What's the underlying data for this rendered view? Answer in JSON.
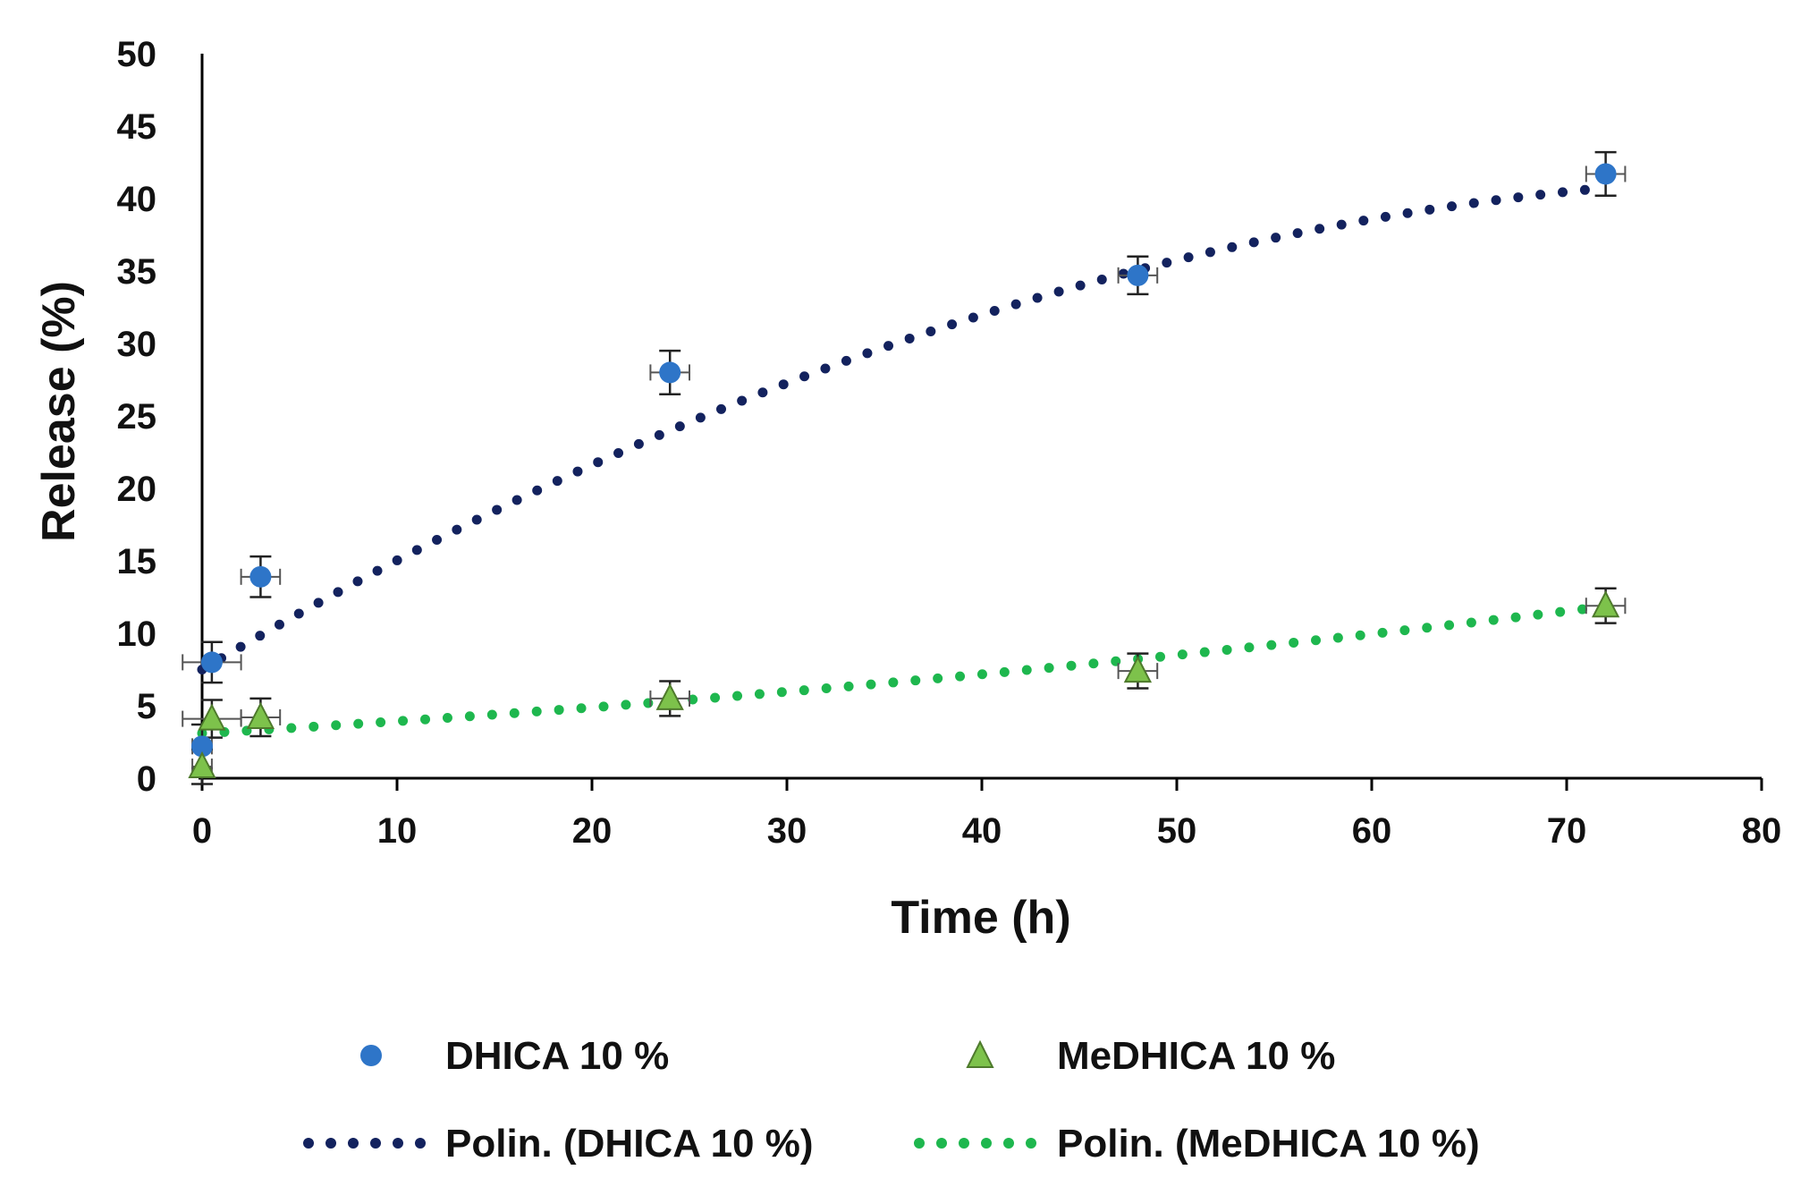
{
  "chart_data": {
    "type": "scatter",
    "title": "",
    "xlabel": "Time (h)",
    "ylabel": "Release (%)",
    "xlim": [
      0,
      80
    ],
    "ylim": [
      0,
      50
    ],
    "xticks": [
      0,
      10,
      20,
      30,
      40,
      50,
      60,
      70,
      80
    ],
    "yticks": [
      0,
      5,
      10,
      15,
      20,
      25,
      30,
      35,
      40,
      45,
      50
    ],
    "grid": false,
    "legend_position": "bottom",
    "series": [
      {
        "name": "DHICA 10 %",
        "marker": "circle",
        "color": "#2E75C8",
        "x": [
          0,
          0.5,
          3,
          24,
          48,
          72
        ],
        "y": [
          2.2,
          8.0,
          13.9,
          28.0,
          34.7,
          41.7
        ],
        "y_error": [
          1.5,
          1.4,
          1.4,
          1.5,
          1.3,
          1.5
        ],
        "x_error": [
          0.5,
          1.5,
          1.0,
          1.0,
          1.0,
          1.0
        ]
      },
      {
        "name": "MeDHICA 10 %",
        "marker": "triangle",
        "color": "#7DC24B",
        "x": [
          0,
          0.5,
          3,
          24,
          48,
          72
        ],
        "y": [
          0.8,
          4.1,
          4.2,
          5.5,
          7.4,
          11.9
        ],
        "y_error": [
          1.2,
          1.3,
          1.3,
          1.2,
          1.2,
          1.2
        ],
        "x_error": [
          0.5,
          1.5,
          1.0,
          1.0,
          1.0,
          1.0
        ]
      }
    ],
    "trendlines": [
      {
        "name": "Polin. (DHICA 10 %)",
        "type": "polynomial",
        "color": "#13225E",
        "coefficients": [
          7.5,
          0.8,
          -0.0047
        ]
      },
      {
        "name": "Polin. (MeDHICA 10 %)",
        "type": "polynomial",
        "color": "#1EB74E",
        "coefficients": [
          3.1,
          0.077,
          0.00062
        ]
      }
    ]
  }
}
